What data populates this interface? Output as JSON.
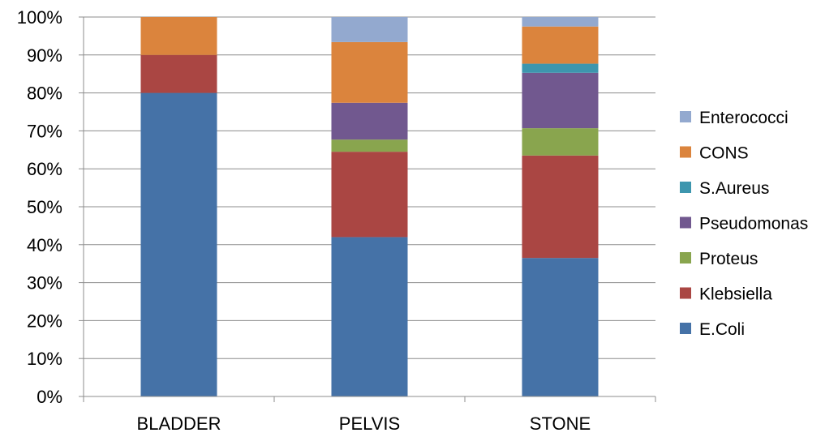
{
  "chart_data": {
    "type": "bar",
    "stacked": true,
    "percent": true,
    "categories": [
      "BLADDER",
      "PELVIS",
      "STONE"
    ],
    "series": [
      {
        "name": "E.Coli",
        "color": "#4572A7",
        "values": [
          80,
          42,
          36.5
        ]
      },
      {
        "name": "Klebsiella",
        "color": "#AA4643",
        "values": [
          10,
          22.5,
          27
        ]
      },
      {
        "name": "Proteus",
        "color": "#89A54E",
        "values": [
          0,
          3.2,
          7.2
        ]
      },
      {
        "name": "Pseudomonas",
        "color": "#71588F",
        "values": [
          0,
          9.7,
          14.6
        ]
      },
      {
        "name": "S.Aureus",
        "color": "#3D96AE",
        "values": [
          0,
          0,
          2.4
        ]
      },
      {
        "name": "CONS",
        "color": "#DB843D",
        "values": [
          10,
          16,
          9.8
        ]
      },
      {
        "name": "Enterococci",
        "color": "#93A9CF",
        "values": [
          0,
          6.6,
          2.5
        ]
      }
    ],
    "yticks": [
      "0%",
      "10%",
      "20%",
      "30%",
      "40%",
      "50%",
      "60%",
      "70%",
      "80%",
      "90%",
      "100%"
    ],
    "ylim": [
      0,
      100
    ],
    "grid": true,
    "legend": "right"
  }
}
